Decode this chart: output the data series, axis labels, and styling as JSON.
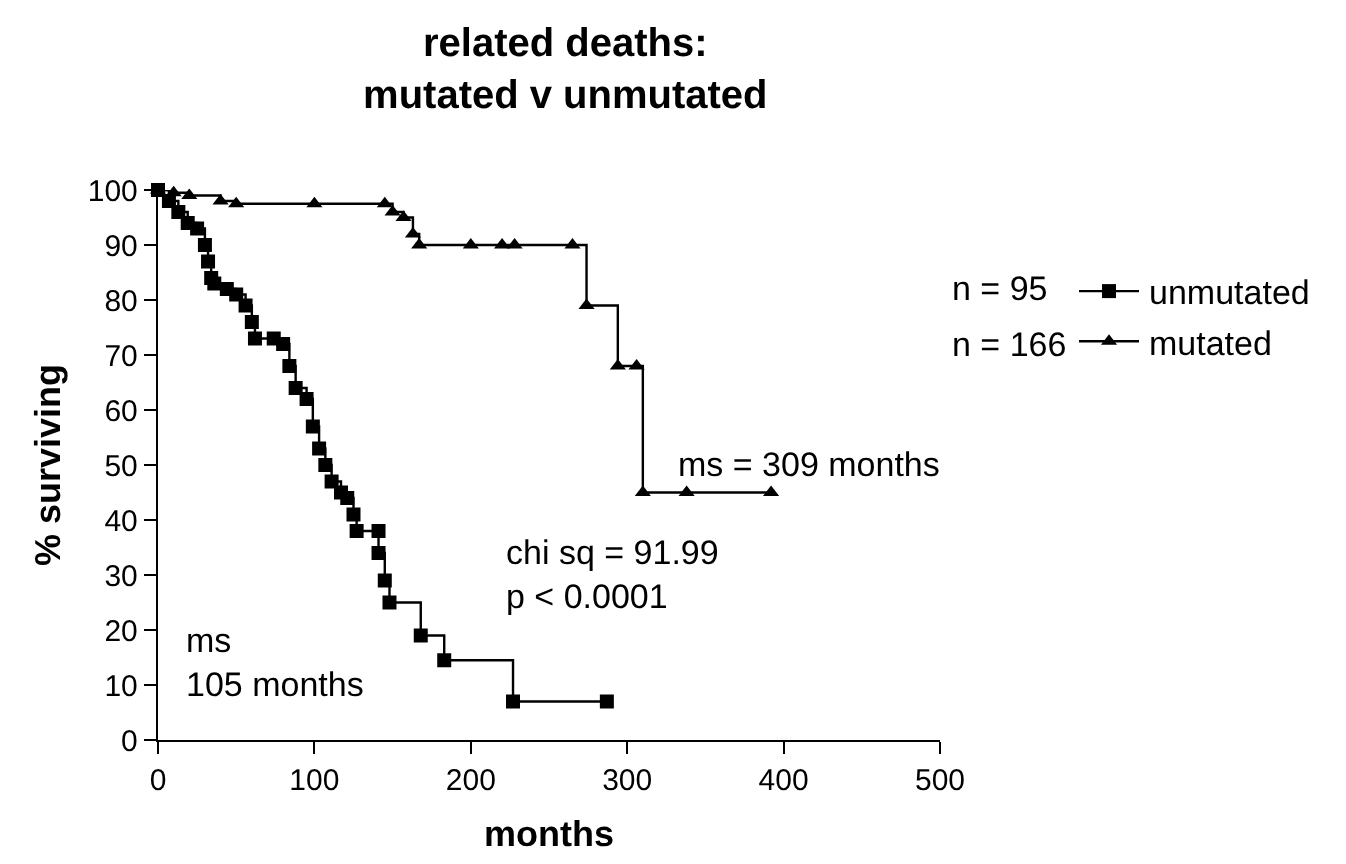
{
  "chart_data": {
    "type": "step",
    "title": "related deaths:\nmutated v unmutated",
    "xlabel": "months",
    "ylabel": "% surviving",
    "xlim": [
      0,
      500
    ],
    "xticks": [
      0,
      100,
      200,
      300,
      400,
      500
    ],
    "ylim": [
      0,
      100
    ],
    "yticks": [
      0,
      10,
      20,
      30,
      40,
      50,
      60,
      70,
      80,
      90,
      100
    ],
    "grid": false,
    "legend": "top right",
    "line_style": "solid",
    "series": [
      {
        "name": "unmutated",
        "color": "#000000",
        "marker": "square",
        "x": [
          0,
          7,
          13,
          19,
          25,
          30,
          32,
          34,
          36,
          44,
          50,
          56,
          60,
          62,
          74,
          80,
          84,
          88,
          95,
          99,
          103,
          107,
          111,
          117,
          121,
          125,
          127,
          141,
          141,
          145,
          148,
          168,
          183,
          227,
          287
        ],
        "values": [
          100,
          98,
          96,
          94,
          93,
          90,
          87,
          84,
          83,
          82,
          81,
          79,
          76,
          73,
          73,
          72,
          68,
          64,
          62,
          57,
          53,
          50,
          47,
          45,
          44,
          41,
          38,
          38,
          34,
          29,
          25,
          19,
          14.5,
          7,
          7
        ]
      },
      {
        "name": "mutated",
        "color": "#000000",
        "marker": "triangle",
        "x": [
          0,
          10,
          20,
          40,
          50,
          100,
          145,
          150,
          157,
          163,
          167,
          200,
          220,
          228,
          265,
          274,
          294,
          306,
          310,
          338,
          392
        ],
        "values": [
          100,
          99.5,
          99,
          98,
          97.5,
          97.5,
          97.5,
          96,
          95,
          92,
          90,
          90,
          90,
          90,
          90,
          79,
          68,
          68,
          45,
          45,
          45
        ]
      }
    ],
    "annotations": [
      "n = 95",
      "n = 166",
      "ms = 309 months",
      "chi sq = 91.99\np < 0.0001",
      "ms\n105 months"
    ]
  }
}
